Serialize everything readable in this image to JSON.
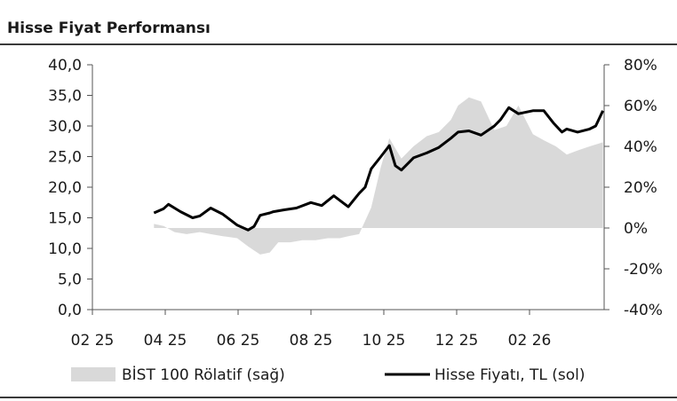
{
  "header": {
    "title": "Hisse Fiyat Performansı"
  },
  "chart_data": {
    "type": "line",
    "title": "Hisse Fiyat Performansı",
    "x_ticks": [
      "02 25",
      "04 25",
      "06 25",
      "08 25",
      "10 25",
      "12 25",
      "02 26"
    ],
    "xlim": [
      "2025-02",
      "2026-04"
    ],
    "y_left": {
      "ticks": [
        "40,0",
        "35,0",
        "30,0",
        "25,0",
        "20,0",
        "15,0",
        "10,0",
        "5,0",
        "0,0"
      ],
      "ylim": [
        0,
        40
      ]
    },
    "y_right": {
      "ticks": [
        "80%",
        "60%",
        "40%",
        "20%",
        "0%",
        "-20%",
        "-40%"
      ],
      "ylim": [
        -40,
        80
      ]
    },
    "grid": false,
    "legend_position": "bottom",
    "series": [
      {
        "name": "BİST 100 Rölatif (sağ)",
        "type": "area",
        "axis": "right",
        "color": "#d9d9d9",
        "x": [
          "2025-03-24",
          "2025-04-01",
          "2025-04-10",
          "2025-04-20",
          "2025-05-01",
          "2025-05-10",
          "2025-05-20",
          "2025-06-01",
          "2025-06-10",
          "2025-06-20",
          "2025-06-28",
          "2025-07-05",
          "2025-07-15",
          "2025-07-25",
          "2025-08-05",
          "2025-08-15",
          "2025-08-25",
          "2025-09-01",
          "2025-09-10",
          "2025-09-20",
          "2025-09-28",
          "2025-10-05",
          "2025-10-15",
          "2025-10-25",
          "2025-11-05",
          "2025-11-15",
          "2025-11-25",
          "2025-12-01",
          "2025-12-10",
          "2025-12-20",
          "2025-12-31",
          "2026-01-10",
          "2026-01-20",
          "2026-02-01",
          "2026-02-10",
          "2026-02-20",
          "2026-03-01",
          "2026-03-10",
          "2026-03-20",
          "2026-03-31"
        ],
        "values": [
          2,
          1,
          -2,
          -3,
          -2,
          -3,
          -4,
          -5,
          -9,
          -13,
          -12,
          -7,
          -7,
          -6,
          -6,
          -5,
          -5,
          -4,
          -3,
          10,
          30,
          44,
          34,
          40,
          45,
          47,
          53,
          60,
          64,
          62,
          48,
          50,
          60,
          46,
          43,
          40,
          36,
          38,
          40,
          42
        ]
      },
      {
        "name": "Hisse Fiyatı, TL (sol)",
        "type": "line",
        "axis": "left",
        "color": "#000000",
        "x": [
          "2025-03-24",
          "2025-04-01",
          "2025-04-05",
          "2025-04-15",
          "2025-04-25",
          "2025-05-01",
          "2025-05-10",
          "2025-05-20",
          "2025-06-01",
          "2025-06-10",
          "2025-06-15",
          "2025-06-20",
          "2025-06-28",
          "2025-07-01",
          "2025-07-10",
          "2025-07-20",
          "2025-08-01",
          "2025-08-10",
          "2025-08-20",
          "2025-09-01",
          "2025-09-10",
          "2025-09-15",
          "2025-09-20",
          "2025-09-28",
          "2025-10-05",
          "2025-10-10",
          "2025-10-15",
          "2025-10-25",
          "2025-11-05",
          "2025-11-15",
          "2025-11-25",
          "2025-12-01",
          "2025-12-10",
          "2025-12-20",
          "2025-12-31",
          "2026-01-05",
          "2026-01-12",
          "2026-01-20",
          "2026-02-01",
          "2026-02-10",
          "2026-02-18",
          "2026-02-25",
          "2026-03-01",
          "2026-03-10",
          "2026-03-20",
          "2026-03-25",
          "2026-03-31"
        ],
        "values": [
          15.8,
          16.5,
          17.2,
          16.0,
          15.0,
          15.3,
          16.6,
          15.6,
          13.8,
          13.0,
          13.6,
          15.4,
          15.8,
          16.0,
          16.3,
          16.6,
          17.5,
          17.0,
          18.6,
          16.8,
          19.0,
          20.0,
          23.0,
          25.0,
          26.8,
          23.5,
          22.8,
          24.8,
          25.6,
          26.5,
          28.0,
          29.0,
          29.2,
          28.5,
          30.0,
          31.0,
          33.0,
          32.0,
          32.5,
          32.5,
          30.5,
          29.0,
          29.5,
          29.0,
          29.5,
          30.0,
          32.5
        ]
      }
    ]
  },
  "legend": {
    "items": [
      {
        "label": "BİST 100 Rölatif (sağ)",
        "kind": "area",
        "color": "#d9d9d9"
      },
      {
        "label": "Hisse Fiyatı, TL (sol)",
        "kind": "line",
        "color": "#000000"
      }
    ]
  }
}
